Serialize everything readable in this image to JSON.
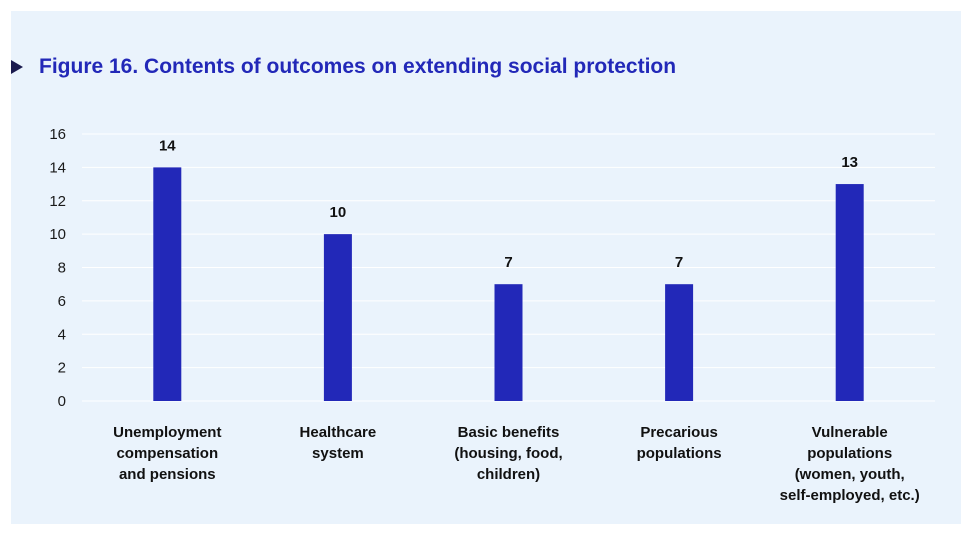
{
  "figure": {
    "title": "Figure 16. Contents of outcomes on extending social protection"
  },
  "colors": {
    "panel_background": "#eaf3fc",
    "bar": "#2228b8",
    "title": "#2228b8",
    "marker": "#1a1a4e",
    "grid": "#ffffff"
  },
  "icons": {
    "title_marker": "triangle-right-icon"
  },
  "chart_data": {
    "type": "bar",
    "title": "Figure 16. Contents of outcomes on extending social protection",
    "xlabel": "",
    "ylabel": "",
    "ylim": [
      0,
      16
    ],
    "yticks": [
      0,
      2,
      4,
      6,
      8,
      10,
      12,
      14,
      16
    ],
    "grid": true,
    "legend": "none",
    "categories": [
      [
        "Unemployment",
        "compensation",
        "and pensions"
      ],
      [
        "Healthcare",
        "system"
      ],
      [
        "Basic benefits",
        "(housing, food,",
        "children)"
      ],
      [
        "Precarious",
        "populations"
      ],
      [
        "Vulnerable",
        "populations",
        "(women, youth,",
        "self-employed, etc.)"
      ]
    ],
    "values": [
      14,
      10,
      7,
      7,
      13
    ],
    "data_labels": [
      "14",
      "10",
      "7",
      "7",
      "13"
    ]
  }
}
